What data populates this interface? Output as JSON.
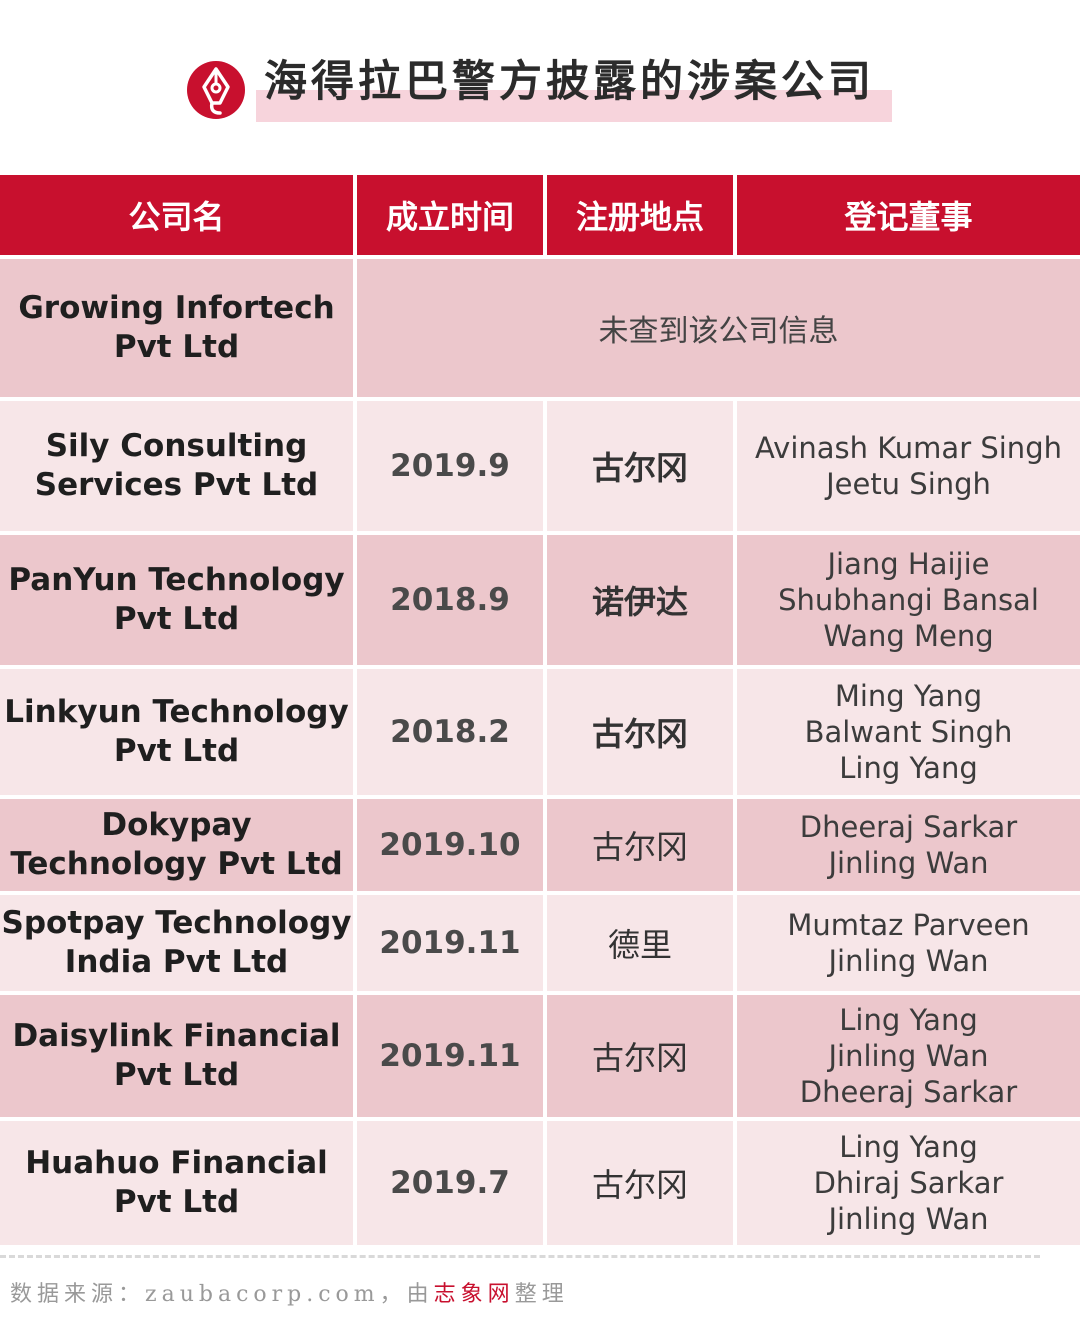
{
  "title": "海得拉巴警方披露的涉案公司",
  "colors": {
    "accent": "#c8102e",
    "row_dark": "#ecc7cc",
    "row_light": "#f7e6e8",
    "title_highlight": "#f7d4dc"
  },
  "logo_icon": "pen-nib-icon",
  "table": {
    "headers": [
      "公司名",
      "成立时间",
      "注册地点",
      "登记董事"
    ],
    "rows": [
      {
        "name": [
          "Growing Infortech",
          "Pvt Ltd"
        ],
        "not_found": "未查到该公司信息"
      },
      {
        "name": [
          "Sily Consulting",
          "Services Pvt Ltd"
        ],
        "date": "2019.9",
        "place": "古尔冈",
        "directors": [
          "Avinash Kumar Singh",
          "Jeetu Singh"
        ]
      },
      {
        "name": [
          "PanYun Technology",
          "Pvt Ltd"
        ],
        "date": "2018.9",
        "place": "诺伊达",
        "directors": [
          "Jiang Haijie",
          "Shubhangi Bansal",
          "Wang Meng"
        ]
      },
      {
        "name": [
          "Linkyun Technology",
          "Pvt Ltd"
        ],
        "date": "2018.2",
        "place": "古尔冈",
        "directors": [
          "Ming Yang",
          "Balwant Singh",
          "Ling Yang"
        ]
      },
      {
        "name": [
          "Dokypay",
          "Technology Pvt Ltd"
        ],
        "date": "2019.10",
        "place": "古尔冈",
        "directors": [
          "Dheeraj Sarkar",
          "Jinling Wan"
        ]
      },
      {
        "name": [
          "Spotpay Technology",
          "India Pvt Ltd"
        ],
        "date": "2019.11",
        "place": "德里",
        "directors": [
          "Mumtaz Parveen",
          "Jinling Wan"
        ]
      },
      {
        "name": [
          "Daisylink Financial",
          "Pvt Ltd"
        ],
        "date": "2019.11",
        "place": "古尔冈",
        "directors": [
          "Ling Yang",
          "Jinling Wan",
          "Dheeraj Sarkar"
        ]
      },
      {
        "name": [
          "Huahuo Financial",
          "Pvt Ltd"
        ],
        "date": "2019.7",
        "place": "古尔冈",
        "directors": [
          "Ling Yang",
          "Dhiraj Sarkar",
          "Jinling Wan"
        ]
      }
    ]
  },
  "footer": {
    "prefix": "数据来源：zaubacorp.com，由",
    "brand": "志象网",
    "suffix": "整理"
  }
}
